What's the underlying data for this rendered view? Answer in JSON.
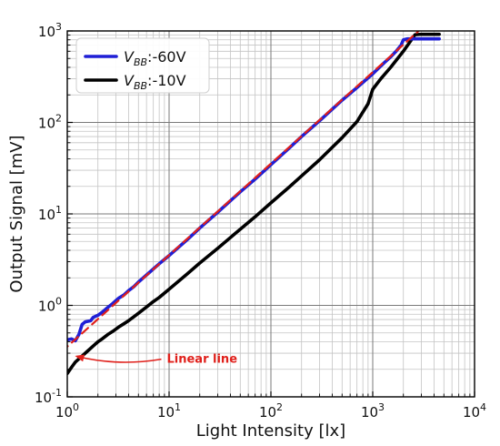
{
  "chart_data": {
    "type": "line",
    "title": "",
    "xlabel": "Light Intensity [lx]",
    "ylabel": "Output Signal [mV]",
    "xscale": "log",
    "yscale": "log",
    "xlim": [
      1,
      10000
    ],
    "ylim": [
      0.1,
      1000
    ],
    "x_ticks": [
      1,
      10,
      100,
      1000,
      10000
    ],
    "x_tick_labels": [
      [
        "10",
        "0"
      ],
      [
        "10",
        "1"
      ],
      [
        "10",
        "2"
      ],
      [
        "10",
        "3"
      ],
      [
        "10",
        "4"
      ]
    ],
    "y_ticks": [
      0.1,
      1,
      10,
      100,
      1000
    ],
    "y_tick_labels": [
      [
        "10",
        "-1"
      ],
      [
        "10",
        "0"
      ],
      [
        "10",
        "1"
      ],
      [
        "10",
        "2"
      ],
      [
        "10",
        "3"
      ]
    ],
    "grid": "major and minor",
    "legend": {
      "placement": "top-left",
      "entries": [
        {
          "main": "V",
          "sub": "BB",
          "suffix": ":-60V",
          "color": "#1f1fd6"
        },
        {
          "main": "V",
          "sub": "BB",
          "suffix": ":-10V",
          "color": "#000000"
        }
      ]
    },
    "series": [
      {
        "legend_index": 0,
        "color": "#1f1fd6",
        "points": [
          [
            1.0,
            0.42
          ],
          [
            1.1,
            0.43
          ],
          [
            1.2,
            0.41
          ],
          [
            1.3,
            0.48
          ],
          [
            1.4,
            0.62
          ],
          [
            1.5,
            0.66
          ],
          [
            1.7,
            0.68
          ],
          [
            1.8,
            0.74
          ],
          [
            2.0,
            0.78
          ],
          [
            2.2,
            0.84
          ],
          [
            2.5,
            0.95
          ],
          [
            2.8,
            1.05
          ],
          [
            3.2,
            1.2
          ],
          [
            3.6,
            1.3
          ],
          [
            4.0,
            1.45
          ],
          [
            4.5,
            1.6
          ],
          [
            5.0,
            1.8
          ],
          [
            6.0,
            2.15
          ],
          [
            7.0,
            2.5
          ],
          [
            8.0,
            2.85
          ],
          [
            10,
            3.5
          ],
          [
            15,
            5.2
          ],
          [
            20,
            7
          ],
          [
            30,
            10.4
          ],
          [
            50,
            17.4
          ],
          [
            70,
            24
          ],
          [
            100,
            34.5
          ],
          [
            150,
            52
          ],
          [
            200,
            70
          ],
          [
            300,
            104
          ],
          [
            500,
            175
          ],
          [
            700,
            240
          ],
          [
            1000,
            340
          ],
          [
            1300,
            450
          ],
          [
            1500,
            520
          ],
          [
            1700,
            600
          ],
          [
            1900,
            700
          ],
          [
            2000,
            800
          ],
          [
            2200,
            820
          ],
          [
            2500,
            820
          ],
          [
            3000,
            820
          ],
          [
            4500,
            820
          ]
        ]
      },
      {
        "legend_index": 1,
        "color": "#000000",
        "points": [
          [
            1.0,
            0.18
          ],
          [
            1.1,
            0.21
          ],
          [
            1.2,
            0.24
          ],
          [
            1.4,
            0.28
          ],
          [
            1.6,
            0.32
          ],
          [
            1.8,
            0.36
          ],
          [
            2.0,
            0.4
          ],
          [
            2.2,
            0.43
          ],
          [
            2.5,
            0.48
          ],
          [
            2.8,
            0.52
          ],
          [
            3.2,
            0.58
          ],
          [
            3.6,
            0.63
          ],
          [
            4.0,
            0.68
          ],
          [
            4.5,
            0.75
          ],
          [
            5.0,
            0.82
          ],
          [
            6.0,
            0.96
          ],
          [
            7.0,
            1.1
          ],
          [
            8.0,
            1.22
          ],
          [
            10,
            1.5
          ],
          [
            15,
            2.2
          ],
          [
            20,
            2.9
          ],
          [
            30,
            4.2
          ],
          [
            50,
            6.8
          ],
          [
            70,
            9.3
          ],
          [
            100,
            13.2
          ],
          [
            150,
            19.5
          ],
          [
            200,
            26
          ],
          [
            300,
            39
          ],
          [
            500,
            68
          ],
          [
            700,
            102
          ],
          [
            900,
            160
          ],
          [
            1000,
            230
          ],
          [
            1200,
            300
          ],
          [
            1500,
            400
          ],
          [
            2000,
            600
          ],
          [
            2400,
            800
          ],
          [
            2600,
            910
          ],
          [
            3000,
            920
          ],
          [
            4500,
            920
          ]
        ]
      },
      {
        "legend_index": null,
        "color": "#e0201b",
        "dashed": true,
        "points": [
          [
            0.7,
            0.248
          ],
          [
            7000,
            2480
          ]
        ]
      }
    ],
    "annotation": {
      "text": "Linear line",
      "color": "#e0201b",
      "arrow_to": [
        1.05,
        0.29
      ],
      "text_at": [
        9.5,
        0.27
      ]
    }
  }
}
